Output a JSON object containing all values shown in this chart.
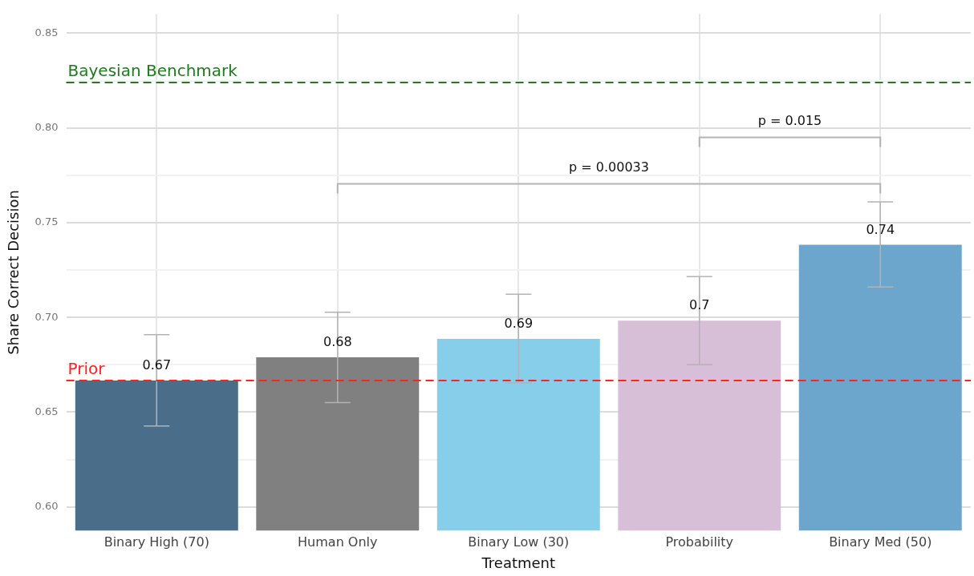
{
  "chart_data": {
    "type": "bar",
    "xlabel": "Treatment",
    "ylabel": "Share Correct Decision",
    "categories": [
      "Binary High (70)",
      "Human Only",
      "Binary Low (30)",
      "Probability",
      "Binary Med (50)"
    ],
    "values": [
      0.6667,
      0.6789,
      0.6886,
      0.6983,
      0.7383
    ],
    "colors": [
      "#4a6e8a",
      "#808080",
      "#87ceeb",
      "#d8bfd8",
      "#6ca6cd"
    ],
    "value_labels": [
      "0.67",
      "0.68",
      "0.69",
      "0.7",
      "0.74"
    ],
    "errors": [
      [
        0.6427,
        0.6909
      ],
      [
        0.655,
        0.7027
      ],
      [
        0.6654,
        0.7122
      ],
      [
        0.675,
        0.7215
      ],
      [
        0.716,
        0.761
      ]
    ],
    "ylim": [
      0.5875,
      0.86
    ],
    "yticks": [
      {
        "value": 0.6,
        "label": "0.60"
      },
      {
        "value": 0.625,
        "label": null
      },
      {
        "value": 0.65,
        "label": "0.65"
      },
      {
        "value": 0.675,
        "label": null
      },
      {
        "value": 0.7,
        "label": "0.70"
      },
      {
        "value": 0.725,
        "label": null
      },
      {
        "value": 0.75,
        "label": "0.75"
      },
      {
        "value": 0.775,
        "label": null
      },
      {
        "value": 0.8,
        "label": "0.80"
      },
      {
        "value": 0.825,
        "label": null
      },
      {
        "value": 0.85,
        "label": "0.85"
      }
    ],
    "ref_lines": [
      {
        "axis": "y",
        "value": 0.824,
        "label": "Bayesian Benchmark",
        "color": "#1e7b1e",
        "line_style": "dashed"
      },
      {
        "axis": "y",
        "value": 0.6667,
        "label": "Prior",
        "color": "#ff2020",
        "line_style": "dashed"
      }
    ],
    "annotations": [
      "p = 0.00033",
      "p = 0.015"
    ],
    "grid": true,
    "legend": false
  }
}
